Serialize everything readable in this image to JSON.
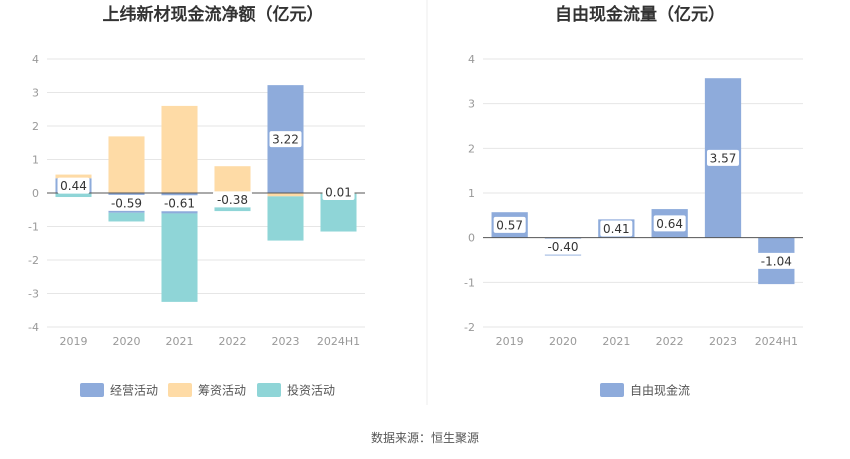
{
  "footer": {
    "source": "数据来源：恒生聚源"
  },
  "chart_data": [
    {
      "type": "bar",
      "stacked": true,
      "title": "上纬新材现金流净额（亿元）",
      "categories": [
        "2019",
        "2020",
        "2021",
        "2022",
        "2023",
        "2024H1"
      ],
      "series": [
        {
          "name": "经营活动",
          "color": "#8eabdb",
          "values": [
            0.44,
            -0.59,
            -0.61,
            -0.38,
            3.22,
            0.01
          ]
        },
        {
          "name": "筹资活动",
          "color": "#fedba6",
          "values": [
            0.11,
            1.69,
            2.6,
            0.8,
            -0.1,
            -0.02
          ]
        },
        {
          "name": "投资活动",
          "color": "#8fd5d7",
          "values": [
            -0.12,
            -0.26,
            -2.64,
            -0.16,
            -1.32,
            -1.13
          ]
        }
      ],
      "data_labels": [
        {
          "index": 0,
          "text": "0.44"
        },
        {
          "index": 1,
          "text": "-0.59"
        },
        {
          "index": 2,
          "text": "-0.61"
        },
        {
          "index": 3,
          "text": "-0.38"
        },
        {
          "index": 4,
          "text": "3.22"
        },
        {
          "index": 5,
          "text": "0.01"
        }
      ],
      "ylim": [
        -4,
        4
      ],
      "yticks": [
        "4",
        "3",
        "2",
        "1",
        "0",
        "-1",
        "-2",
        "-3",
        "-4"
      ],
      "grid": true,
      "legend": "bottom"
    },
    {
      "type": "bar",
      "title": "自由现金流量（亿元）",
      "categories": [
        "2019",
        "2020",
        "2021",
        "2022",
        "2023",
        "2024H1"
      ],
      "series": [
        {
          "name": "自由现金流",
          "color": "#8eabdb",
          "values": [
            0.57,
            -0.4,
            0.41,
            0.64,
            3.57,
            -1.04
          ]
        }
      ],
      "data_labels": [
        {
          "index": 0,
          "text": "0.57"
        },
        {
          "index": 1,
          "text": "-0.40"
        },
        {
          "index": 2,
          "text": "0.41"
        },
        {
          "index": 3,
          "text": "0.64"
        },
        {
          "index": 4,
          "text": "3.57"
        },
        {
          "index": 5,
          "text": "-1.04"
        }
      ],
      "ylim": [
        -2,
        4
      ],
      "yticks": [
        "4",
        "3",
        "2",
        "1",
        "0",
        "-1",
        "-2"
      ],
      "grid": true,
      "legend": "bottom"
    }
  ]
}
